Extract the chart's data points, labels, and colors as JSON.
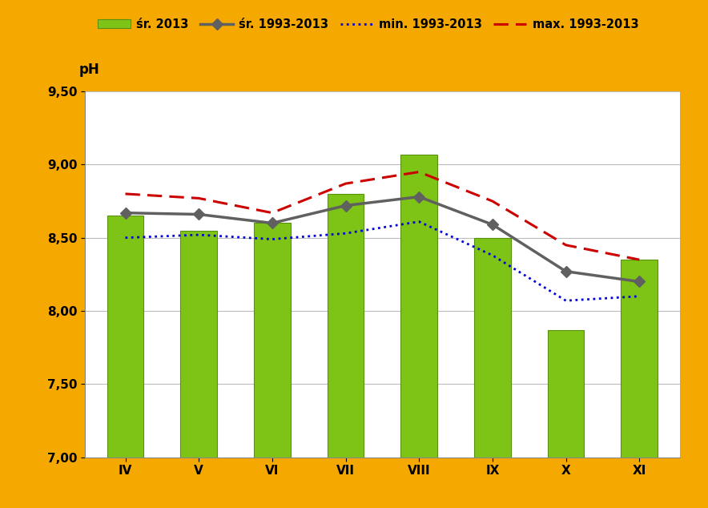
{
  "categories": [
    "IV",
    "V",
    "VI",
    "VII",
    "VIII",
    "IX",
    "X",
    "XI"
  ],
  "bar_2013": [
    8.65,
    8.55,
    8.6,
    8.8,
    9.07,
    8.5,
    7.87,
    8.35
  ],
  "avg_1993_2013": [
    8.67,
    8.66,
    8.6,
    8.72,
    8.78,
    8.59,
    8.27,
    8.2
  ],
  "min_1993_2013": [
    8.5,
    8.52,
    8.49,
    8.53,
    8.61,
    8.38,
    8.07,
    8.1
  ],
  "max_1993_2013": [
    8.8,
    8.77,
    8.67,
    8.87,
    8.95,
    8.75,
    8.45,
    8.35
  ],
  "bar_color": "#7DC417",
  "avg_color": "#606060",
  "min_color": "#0000DD",
  "max_color": "#CC0000",
  "background_color": "#F5A800",
  "plot_bg_color": "#FFFFFF",
  "ylabel": "pH",
  "ylim": [
    7.0,
    9.5
  ],
  "yticks": [
    7.0,
    7.5,
    8.0,
    8.5,
    9.0,
    9.5
  ],
  "ytick_labels": [
    "7,00",
    "7,50",
    "8,00",
    "8,50",
    "9,00",
    "9,50"
  ],
  "legend_labels": [
    "śr. 2013",
    "śr. 1993-2013",
    "min. 1993-2013",
    "max. 1993-2013"
  ],
  "tick_fontsize": 11,
  "label_fontsize": 12,
  "legend_fontsize": 10.5
}
